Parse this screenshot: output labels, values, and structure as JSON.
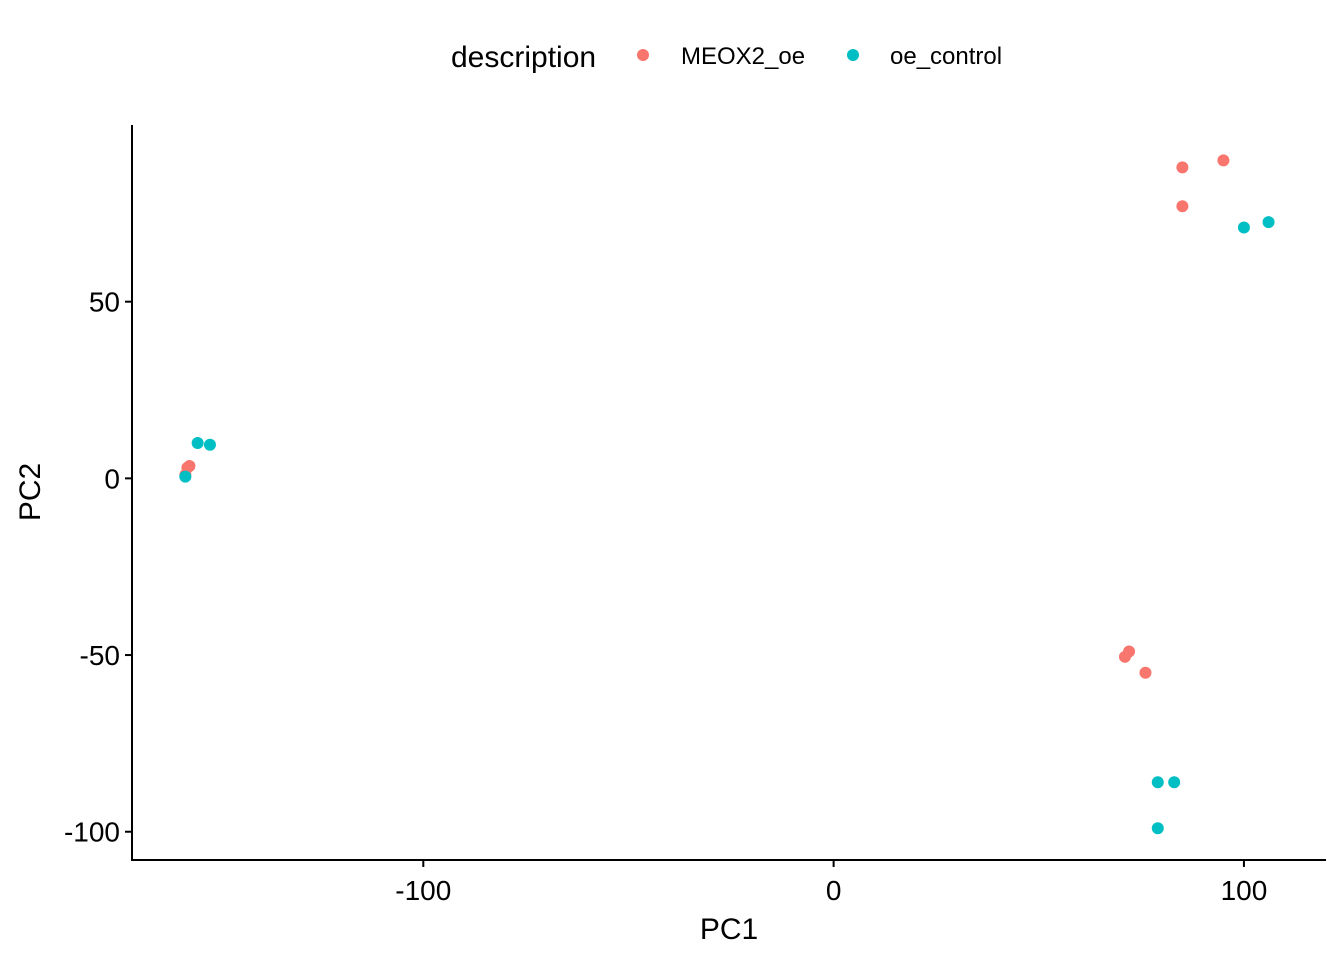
{
  "chart_data": {
    "type": "scatter",
    "xlabel": "PC1",
    "ylabel": "PC2",
    "xlim": [
      -171,
      120
    ],
    "ylim": [
      -108,
      100
    ],
    "xticks": [
      -100,
      0,
      100
    ],
    "yticks": [
      -100,
      -50,
      0,
      50
    ],
    "grid": false,
    "legend": {
      "title": "description",
      "position": "top"
    },
    "series": [
      {
        "name": "MEOX2_oe",
        "color": "#F8766D",
        "points": [
          {
            "x": -158,
            "y": 1
          },
          {
            "x": -157.5,
            "y": 3
          },
          {
            "x": -157,
            "y": 3.5
          },
          {
            "x": 71,
            "y": -50.5
          },
          {
            "x": 72,
            "y": -49
          },
          {
            "x": 76,
            "y": -55
          },
          {
            "x": 85,
            "y": 88
          },
          {
            "x": 85,
            "y": 77
          },
          {
            "x": 95,
            "y": 90
          }
        ]
      },
      {
        "name": "oe_control",
        "color": "#00BFC4",
        "points": [
          {
            "x": -158,
            "y": 0.5
          },
          {
            "x": -155,
            "y": 10
          },
          {
            "x": -152,
            "y": 9.5
          },
          {
            "x": 79,
            "y": -86
          },
          {
            "x": 83,
            "y": -86
          },
          {
            "x": 79,
            "y": -99
          },
          {
            "x": 100,
            "y": 71
          },
          {
            "x": 106,
            "y": 72.5
          }
        ]
      }
    ]
  }
}
